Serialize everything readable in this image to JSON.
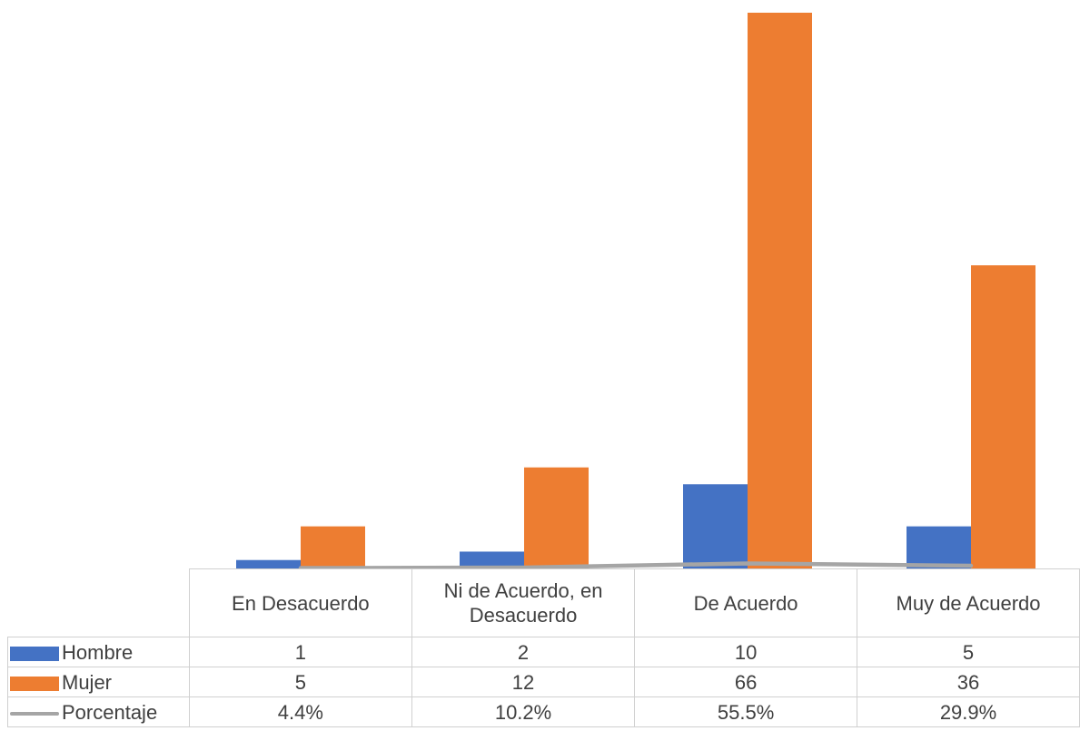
{
  "chart_data": {
    "type": "bar",
    "categories": [
      "En Desacuerdo",
      "Ni de Acuerdo, en Desacuerdo",
      "De Acuerdo",
      "Muy de Acuerdo"
    ],
    "series": [
      {
        "name": "Hombre",
        "type": "bar",
        "color": "#4472c4",
        "values": [
          1,
          2,
          10,
          5
        ]
      },
      {
        "name": "Mujer",
        "type": "bar",
        "color": "#ed7d31",
        "values": [
          5,
          12,
          66,
          36
        ]
      },
      {
        "name": "Porcentaje",
        "type": "line",
        "color": "#a5a5a5",
        "values": [
          4.4,
          10.2,
          55.5,
          29.9
        ],
        "labels": [
          "4.4%",
          "10.2%",
          "55.5%",
          "29.9%"
        ]
      }
    ],
    "ylim": [
      0,
      66
    ],
    "grid": false,
    "legend": "data-table"
  },
  "table": {
    "categories": [
      "En Desacuerdo",
      "Ni de Acuerdo, en Desacuerdo",
      "De Acuerdo",
      "Muy de Acuerdo"
    ],
    "rows": [
      {
        "label": "Hombre",
        "values": [
          "1",
          "2",
          "10",
          "5"
        ]
      },
      {
        "label": "Mujer",
        "values": [
          "5",
          "12",
          "66",
          "36"
        ]
      },
      {
        "label": "Porcentaje",
        "values": [
          "4.4%",
          "10.2%",
          "55.5%",
          "29.9%"
        ]
      }
    ]
  }
}
